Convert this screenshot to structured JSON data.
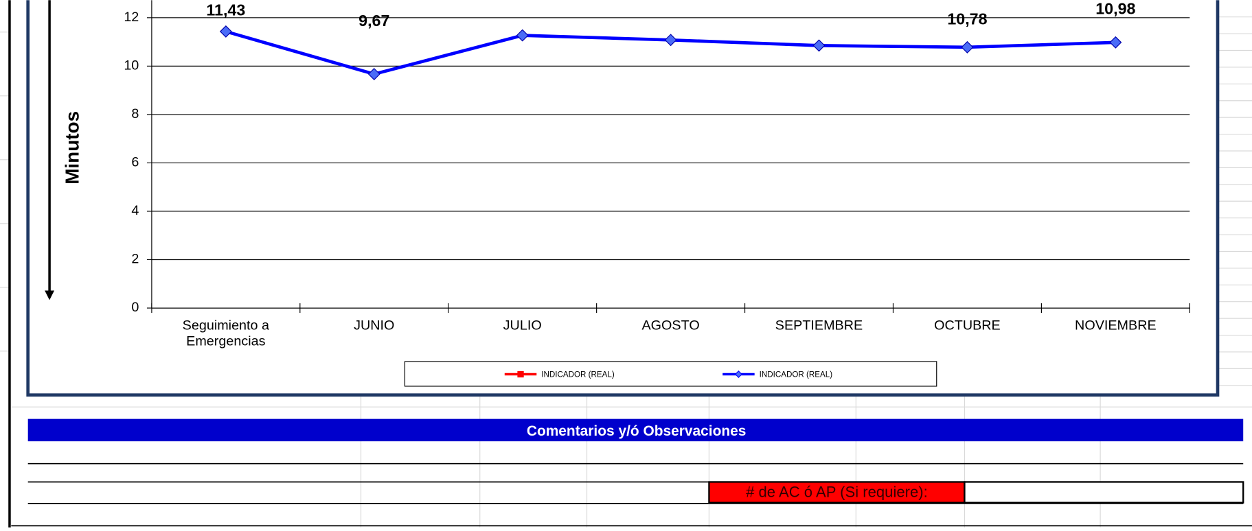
{
  "chart_data": {
    "type": "line",
    "y_label": "Minutos",
    "categories": [
      "Seguimiento a Emergencias",
      "JUNIO",
      "JULIO",
      "AGOSTO",
      "SEPTIEMBRE",
      "OCTUBRE",
      "NOVIEMBRE"
    ],
    "series": [
      {
        "name": "INDICADOR (REAL)",
        "color": "#ff0000",
        "values": [
          null,
          null,
          null,
          null,
          null,
          null,
          null
        ]
      },
      {
        "name": "INDICADOR (REAL)",
        "color": "#0000ff",
        "values": [
          11.43,
          9.67,
          11.27,
          11.08,
          10.85,
          10.78,
          10.98
        ],
        "value_labels": [
          "11,43",
          "9,67",
          null,
          null,
          null,
          "10,78",
          "10,98"
        ]
      }
    ],
    "ylim": [
      0,
      12
    ],
    "yticks": [
      0,
      2,
      4,
      6,
      8,
      10,
      12
    ],
    "grid": true
  },
  "comments_header": "Comentarios y/ó Observaciones",
  "ac_label": "# de AC ó AP (Si requiere):"
}
